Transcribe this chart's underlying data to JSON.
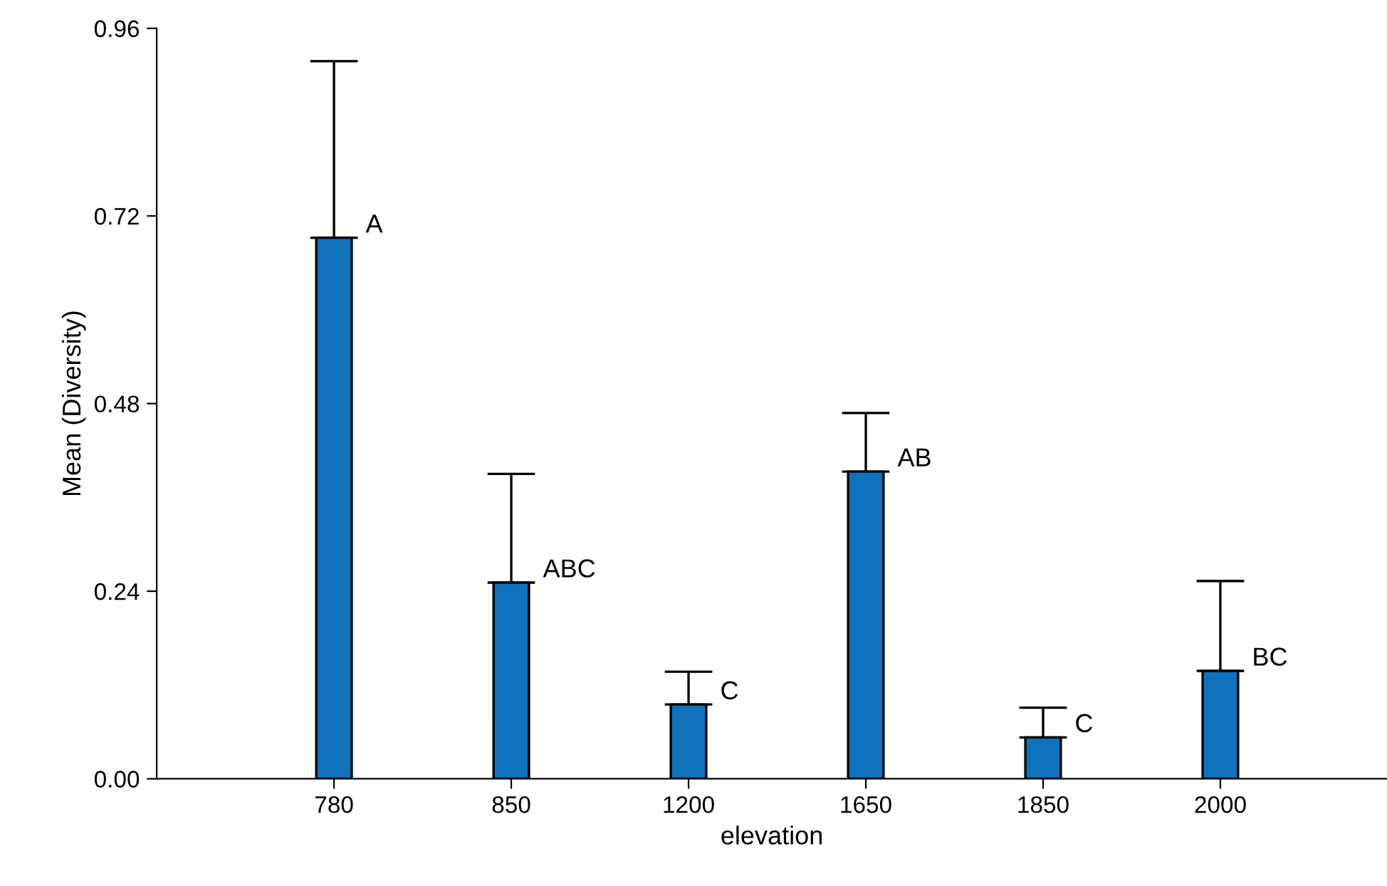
{
  "chart_data": {
    "type": "bar",
    "xlabel": "elevation",
    "ylabel": "Mean (Diversity)",
    "categories": [
      "780",
      "850",
      "1200",
      "1650",
      "1850",
      "2000"
    ],
    "values": [
      0.692,
      0.251,
      0.095,
      0.393,
      0.053,
      0.138
    ],
    "errors": [
      [
        0.692,
        0.918
      ],
      [
        0.251,
        0.39
      ],
      [
        0.095,
        0.137
      ],
      [
        0.393,
        0.468
      ],
      [
        0.053,
        0.091
      ],
      [
        0.138,
        0.253
      ]
    ],
    "color": "#0f72bb",
    "ylim": [
      0,
      0.96
    ],
    "yticks": [
      {
        "value": 0,
        "label": "0.00"
      },
      {
        "value": 0.24,
        "label": "0.24"
      },
      {
        "value": 0.48,
        "label": "0.48"
      },
      {
        "value": 0.72,
        "label": "0.72"
      },
      {
        "value": 0.96,
        "label": "0.96"
      }
    ],
    "annotations": [
      {
        "text": "A",
        "x": "780",
        "y": 0.692
      },
      {
        "text": "ABC",
        "x": "850",
        "y": 0.251
      },
      {
        "text": "C",
        "x": "1200",
        "y": 0.095
      },
      {
        "text": "AB",
        "x": "1650",
        "y": 0.393
      },
      {
        "text": "C",
        "x": "1850",
        "y": 0.053
      },
      {
        "text": "BC",
        "x": "2000",
        "y": 0.138
      }
    ],
    "grid": false,
    "legend": false
  }
}
